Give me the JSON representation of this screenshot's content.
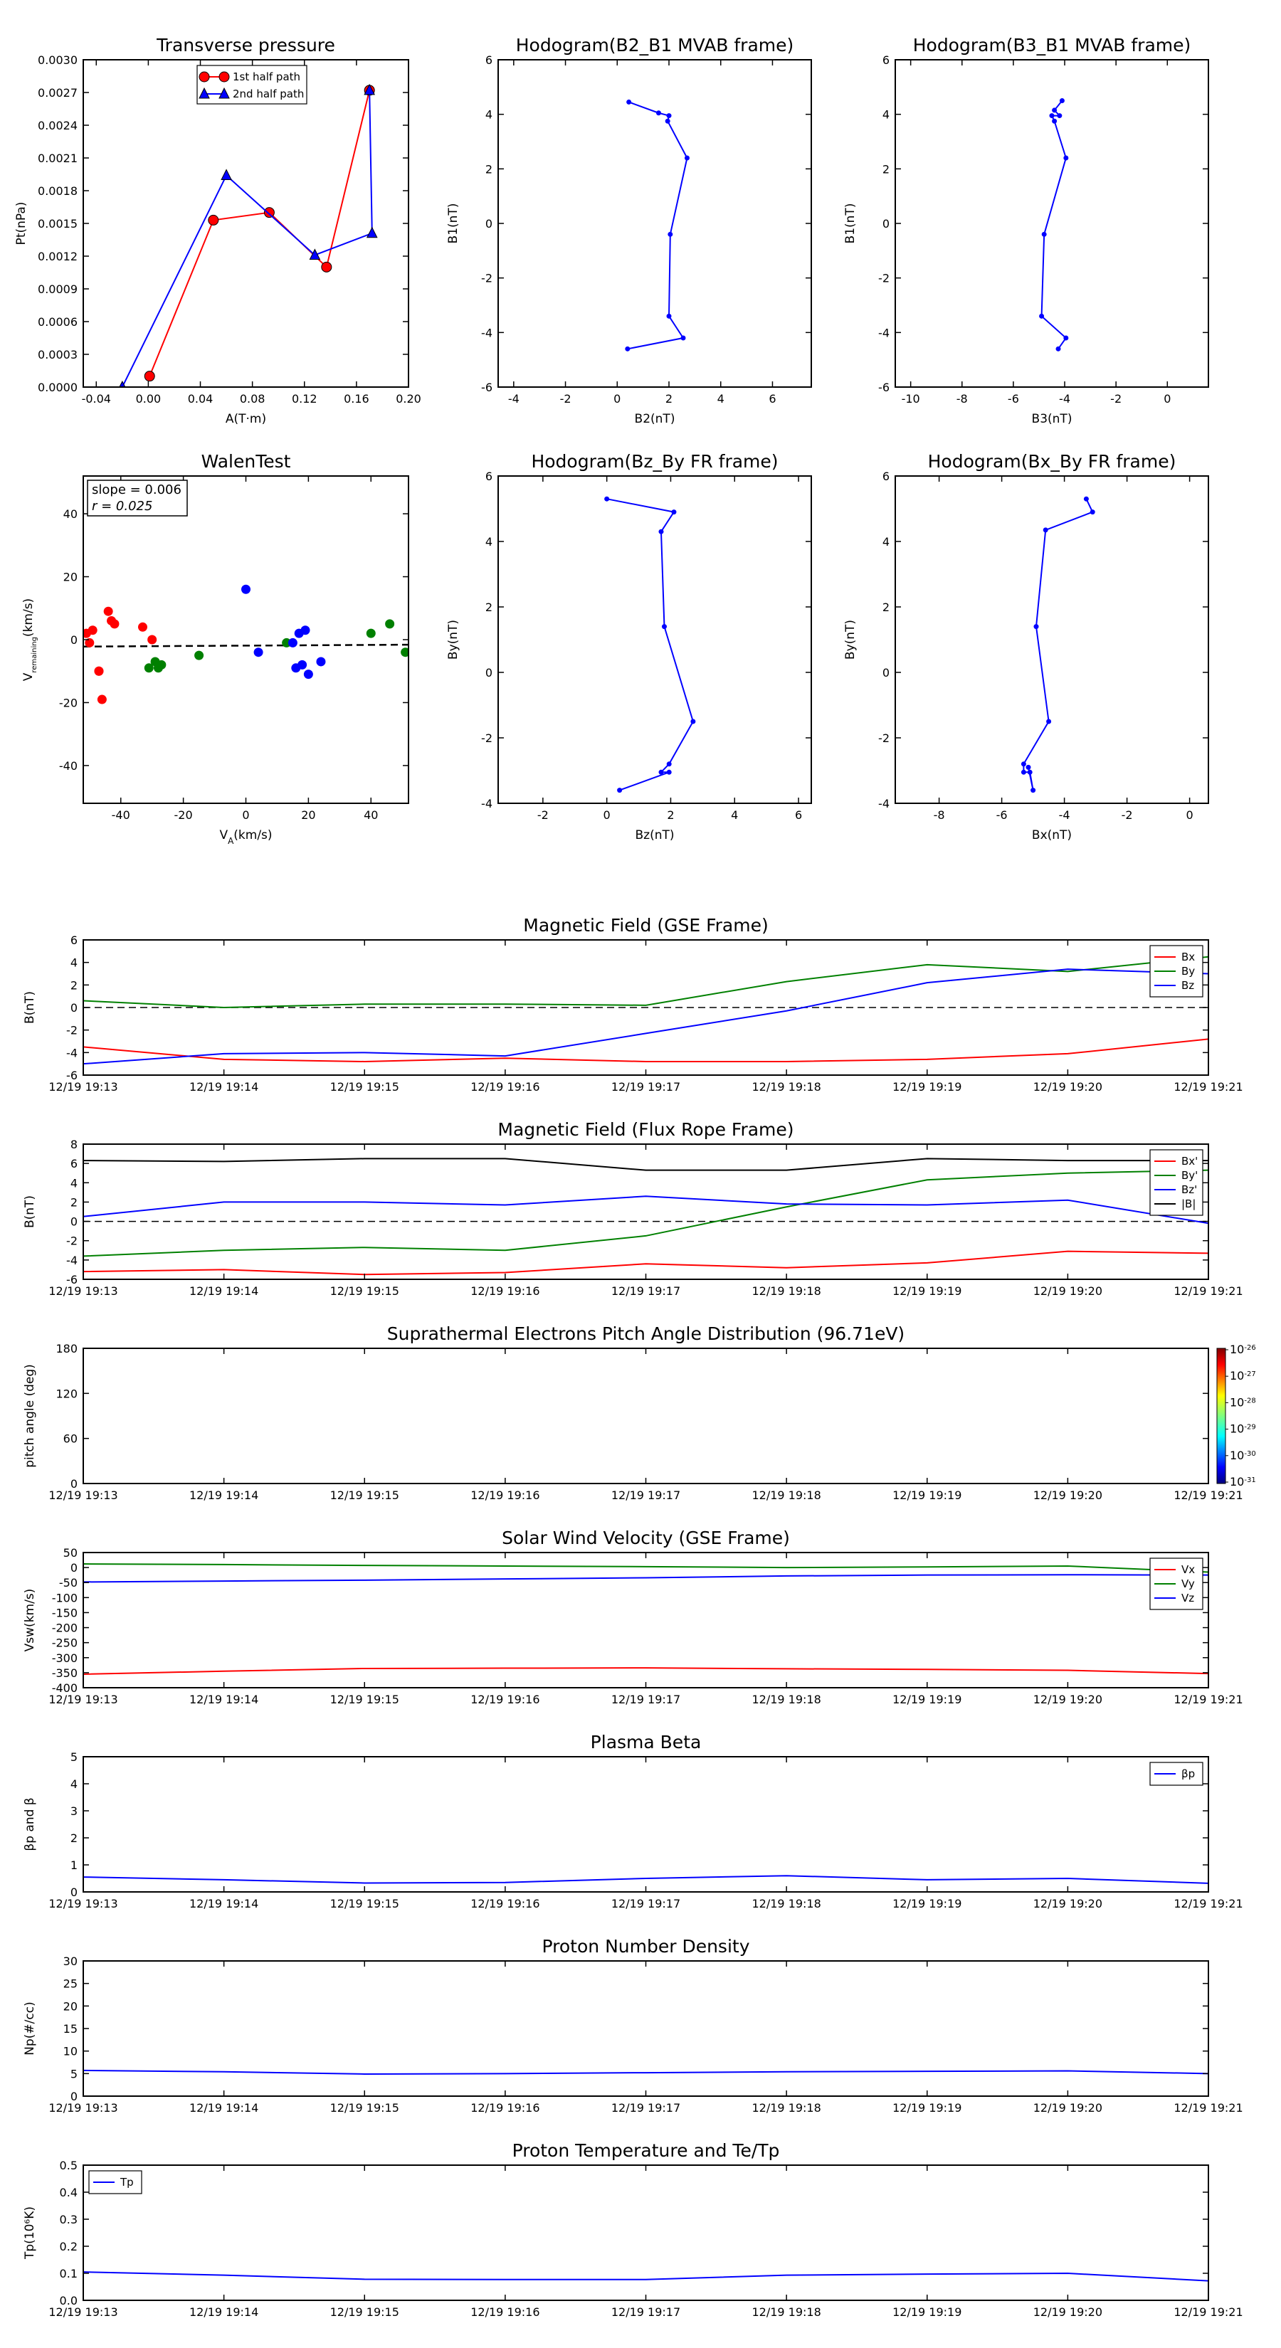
{
  "colors": {
    "red": "#ff0000",
    "green": "#008000",
    "blue": "#0000ff",
    "black": "#000000"
  },
  "chart_data": [
    {
      "id": "tp",
      "type": "line",
      "title": "Transverse pressure",
      "xlabel": "A(T·m)",
      "ylabel": "Pt(nPa)",
      "xlim": [
        -0.05,
        0.2
      ],
      "ylim": [
        0,
        0.003
      ],
      "xticks": [
        "-0.04",
        "0.00",
        "0.04",
        "0.08",
        "0.12",
        "0.16",
        "0.20"
      ],
      "yticks": [
        "0.0000",
        "0.0003",
        "0.0006",
        "0.0009",
        "0.0012",
        "0.0015",
        "0.0018",
        "0.0021",
        "0.0024",
        "0.0027",
        "0.0030"
      ],
      "legend_loc": "upper-center",
      "series": [
        {
          "name": "1st half path",
          "color": "#ff0000",
          "marker": "circle",
          "x": [
            0.001,
            0.05,
            0.093,
            0.137,
            0.17
          ],
          "y": [
            0.0001,
            0.00153,
            0.0016,
            0.0011,
            0.00272
          ]
        },
        {
          "name": "2nd half path",
          "color": "#0000ff",
          "marker": "triangle",
          "x": [
            0.17,
            0.172,
            0.128,
            0.06,
            -0.02
          ],
          "y": [
            0.00272,
            0.00141,
            0.00121,
            0.00194,
            0.0
          ]
        }
      ]
    },
    {
      "id": "h1",
      "type": "line",
      "title": "Hodogram(B2_B1 MVAB frame)",
      "xlabel": "B2(nT)",
      "ylabel": "B1(nT)",
      "xlim": [
        -4.6,
        7.5
      ],
      "ylim": [
        -6,
        6
      ],
      "xticks": [
        "-4",
        "-2",
        "0",
        "2",
        "4",
        "6"
      ],
      "yticks": [
        "-6",
        "-4",
        "-2",
        "0",
        "2",
        "4",
        "6"
      ],
      "series": [
        {
          "name": "",
          "color": "#0000ff",
          "marker": "dot",
          "x": [
            0.45,
            1.6,
            2.0,
            1.95,
            2.7,
            2.05,
            2.0,
            2.55,
            0.4
          ],
          "y": [
            4.45,
            4.05,
            3.95,
            3.75,
            2.4,
            -0.4,
            -3.4,
            -4.2,
            -4.6
          ]
        }
      ]
    },
    {
      "id": "h2",
      "type": "line",
      "title": "Hodogram(B3_B1 MVAB frame)",
      "xlabel": "B3(nT)",
      "ylabel": "B1(nT)",
      "xlim": [
        -10.6,
        1.6
      ],
      "ylim": [
        -6,
        6
      ],
      "xticks": [
        "-10",
        "-8",
        "-6",
        "-4",
        "-2",
        "0"
      ],
      "yticks": [
        "-6",
        "-4",
        "-2",
        "0",
        "2",
        "4",
        "6"
      ],
      "series": [
        {
          "name": "",
          "color": "#0000ff",
          "marker": "dot",
          "x": [
            -4.1,
            -4.4,
            -4.2,
            -4.5,
            -4.4,
            -3.95,
            -4.8,
            -4.9,
            -3.95,
            -4.25
          ],
          "y": [
            4.5,
            4.15,
            3.95,
            3.95,
            3.75,
            2.4,
            -0.4,
            -3.4,
            -4.2,
            -4.6
          ]
        }
      ]
    },
    {
      "id": "walen",
      "type": "scatter",
      "title": "WalenTest",
      "xlabel": "V_A(km/s)",
      "ylabel": "V_remaining(km/s)",
      "xlim": [
        -52,
        52
      ],
      "ylim": [
        -52,
        52
      ],
      "xticks": [
        "-40",
        "-20",
        "0",
        "20",
        "40"
      ],
      "yticks": [
        "-40",
        "-20",
        "0",
        "20",
        "40"
      ],
      "annotation": [
        "slope = 0.006",
        "r = 0.025"
      ],
      "fit_line": {
        "x": [
          -52,
          52
        ],
        "y": [
          -2.2,
          -1.6
        ]
      },
      "series": [
        {
          "name": "",
          "color": "#ff0000",
          "x": [
            -51,
            -49,
            -47,
            -46,
            -44,
            -43,
            -42,
            -33,
            -30,
            -50,
            -47
          ],
          "y": [
            2,
            3,
            -10,
            -19,
            9,
            6,
            5,
            4,
            0,
            -1,
            -10
          ]
        },
        {
          "name": "",
          "color": "#008000",
          "x": [
            -31,
            -29,
            -28,
            -27,
            -15,
            13,
            40,
            46,
            51
          ],
          "y": [
            -9,
            -7,
            -9,
            -8,
            -5,
            -1,
            2,
            5,
            -4
          ]
        },
        {
          "name": "",
          "color": "#0000ff",
          "x": [
            0,
            4,
            15,
            16,
            17,
            18,
            19,
            20,
            24
          ],
          "y": [
            16,
            -4,
            -1,
            -9,
            2,
            -8,
            3,
            -11,
            -7
          ]
        }
      ]
    },
    {
      "id": "h3",
      "type": "line",
      "title": "Hodogram(Bz_By FR frame)",
      "xlabel": "Bz(nT)",
      "ylabel": "By(nT)",
      "xlim": [
        -3.4,
        6.4
      ],
      "ylim": [
        -4,
        6
      ],
      "xticks": [
        "-2",
        "0",
        "2",
        "4",
        "6"
      ],
      "yticks": [
        "-4",
        "-2",
        "0",
        "2",
        "4",
        "6"
      ],
      "series": [
        {
          "name": "",
          "color": "#0000ff",
          "marker": "dot",
          "x": [
            0,
            2.1,
            1.7,
            1.8,
            2.7,
            1.95,
            1.7,
            1.95,
            0.4
          ],
          "y": [
            5.3,
            4.9,
            4.3,
            1.4,
            -1.5,
            -2.8,
            -3.05,
            -3.05,
            -3.6
          ]
        }
      ]
    },
    {
      "id": "h4",
      "type": "line",
      "title": "Hodogram(Bx_By FR frame)",
      "xlabel": "Bx(nT)",
      "ylabel": "By(nT)",
      "xlim": [
        -9.4,
        0.6
      ],
      "ylim": [
        -4,
        6
      ],
      "xticks": [
        "-8",
        "-6",
        "-4",
        "-2",
        "0"
      ],
      "yticks": [
        "-4",
        "-2",
        "0",
        "2",
        "4",
        "6"
      ],
      "series": [
        {
          "name": "",
          "color": "#0000ff",
          "marker": "dot",
          "x": [
            -3.3,
            -3.1,
            -4.6,
            -4.9,
            -4.5,
            -5.3,
            -5.3,
            -5.1,
            -5.0,
            -5.15
          ],
          "y": [
            5.3,
            4.9,
            4.35,
            1.4,
            -1.5,
            -2.8,
            -3.05,
            -3.05,
            -3.6,
            -2.9
          ]
        }
      ]
    },
    {
      "id": "bgse",
      "type": "line",
      "title": "Magnetic Field (GSE Frame)",
      "ylabel": "B(nT)",
      "ylim": [
        -6,
        6
      ],
      "yticks": [
        "-6",
        "-4",
        "-2",
        "0",
        "2",
        "4",
        "6"
      ],
      "zero_line": true,
      "legend_loc": "top-right",
      "x": [
        "12/19 19:13",
        "12/19 19:14",
        "12/19 19:15",
        "12/19 19:16",
        "12/19 19:17",
        "12/19 19:18",
        "12/19 19:19",
        "12/19 19:20",
        "12/19 19:21"
      ],
      "series": [
        {
          "name": "Bx",
          "color": "#ff0000",
          "values": [
            -3.5,
            -4.6,
            -4.8,
            -4.5,
            -4.8,
            -4.8,
            -4.6,
            -4.1,
            -2.8
          ]
        },
        {
          "name": "By",
          "color": "#008000",
          "values": [
            0.6,
            0.0,
            0.3,
            0.3,
            0.2,
            2.3,
            3.8,
            3.2,
            4.5
          ]
        },
        {
          "name": "Bz",
          "color": "#0000ff",
          "values": [
            -5.0,
            -4.1,
            -4.0,
            -4.3,
            -2.3,
            -0.3,
            2.2,
            3.4,
            3.0
          ]
        }
      ]
    },
    {
      "id": "bfr",
      "type": "line",
      "title": "Magnetic Field (Flux Rope Frame)",
      "ylabel": "B(nT)",
      "ylim": [
        -6,
        8
      ],
      "yticks": [
        "-6",
        "-4",
        "-2",
        "0",
        "2",
        "4",
        "6",
        "8"
      ],
      "zero_line": true,
      "legend_loc": "top-right",
      "x": [
        "12/19 19:13",
        "12/19 19:14",
        "12/19 19:15",
        "12/19 19:16",
        "12/19 19:17",
        "12/19 19:18",
        "12/19 19:19",
        "12/19 19:20",
        "12/19 19:21"
      ],
      "series": [
        {
          "name": "Bx'",
          "color": "#ff0000",
          "values": [
            -5.2,
            -5.0,
            -5.5,
            -5.3,
            -4.4,
            -4.8,
            -4.3,
            -3.1,
            -3.3
          ]
        },
        {
          "name": "By'",
          "color": "#008000",
          "values": [
            -3.6,
            -3.0,
            -2.7,
            -3.0,
            -1.5,
            1.5,
            4.3,
            5.0,
            5.3
          ]
        },
        {
          "name": "Bz'",
          "color": "#0000ff",
          "values": [
            0.5,
            2.0,
            2.0,
            1.7,
            2.6,
            1.8,
            1.7,
            2.2,
            -0.2
          ]
        },
        {
          "name": "|B|",
          "color": "#000000",
          "values": [
            6.3,
            6.2,
            6.5,
            6.5,
            5.3,
            5.3,
            6.5,
            6.3,
            6.3
          ]
        }
      ]
    },
    {
      "id": "pad",
      "type": "heatmap",
      "title": "Suprathermal Electrons Pitch Angle Distribution (96.71eV)",
      "ylabel": "pitch angle (deg)",
      "ylim": [
        0,
        180
      ],
      "yticks": [
        "0",
        "60",
        "120",
        "180"
      ],
      "x": [
        "12/19 19:13",
        "12/19 19:14",
        "12/19 19:15",
        "12/19 19:16",
        "12/19 19:17",
        "12/19 19:18",
        "12/19 19:19",
        "12/19 19:20",
        "12/19 19:21"
      ],
      "colorbar": {
        "ticks": [
          "10",
          "10",
          "10",
          "10",
          "10",
          "10"
        ],
        "exponents": [
          "-26",
          "-27",
          "-28",
          "-29",
          "-30",
          "-31"
        ]
      },
      "series": []
    },
    {
      "id": "vsw",
      "type": "line",
      "title": "Solar Wind Velocity (GSE Frame)",
      "ylabel": "Vsw(km/s)",
      "ylim": [
        -400,
        50
      ],
      "yticks": [
        "-400",
        "-350",
        "-300",
        "-250",
        "-200",
        "-150",
        "-100",
        "-50",
        "0",
        "50"
      ],
      "legend_loc": "top-right",
      "x": [
        "12/19 19:13",
        "12/19 19:14",
        "12/19 19:15",
        "12/19 19:16",
        "12/19 19:17",
        "12/19 19:18",
        "12/19 19:19",
        "12/19 19:20",
        "12/19 19:21"
      ],
      "series": [
        {
          "name": "Vx",
          "color": "#ff0000",
          "values": [
            -355,
            -345,
            -336,
            -335,
            -334,
            -337,
            -339,
            -342,
            -353
          ]
        },
        {
          "name": "Vy",
          "color": "#008000",
          "values": [
            12,
            10,
            7,
            5,
            3,
            0,
            2,
            5,
            -15
          ]
        },
        {
          "name": "Vz",
          "color": "#0000ff",
          "values": [
            -48,
            -45,
            -42,
            -38,
            -34,
            -28,
            -25,
            -24,
            -25
          ]
        }
      ]
    },
    {
      "id": "beta",
      "type": "line",
      "title": "Plasma Beta",
      "ylabel": "βp and β",
      "ylim": [
        0,
        5
      ],
      "yticks": [
        "0",
        "1",
        "2",
        "3",
        "4",
        "5"
      ],
      "legend_loc": "top-right",
      "x": [
        "12/19 19:13",
        "12/19 19:14",
        "12/19 19:15",
        "12/19 19:16",
        "12/19 19:17",
        "12/19 19:18",
        "12/19 19:19",
        "12/19 19:20",
        "12/19 19:21"
      ],
      "series": [
        {
          "name": "βp",
          "color": "#0000ff",
          "values": [
            0.55,
            0.45,
            0.33,
            0.35,
            0.5,
            0.6,
            0.45,
            0.5,
            0.32
          ]
        }
      ]
    },
    {
      "id": "np",
      "type": "line",
      "title": "Proton Number Density",
      "ylabel": "Np(#/cc)",
      "ylim": [
        0,
        30
      ],
      "yticks": [
        "0",
        "5",
        "10",
        "15",
        "20",
        "25",
        "30"
      ],
      "x": [
        "12/19 19:13",
        "12/19 19:14",
        "12/19 19:15",
        "12/19 19:16",
        "12/19 19:17",
        "12/19 19:18",
        "12/19 19:19",
        "12/19 19:20",
        "12/19 19:21"
      ],
      "series": [
        {
          "name": "",
          "color": "#0000ff",
          "values": [
            5.7,
            5.4,
            4.9,
            5.0,
            5.2,
            5.4,
            5.5,
            5.6,
            5.0
          ]
        }
      ]
    },
    {
      "id": "tp2",
      "type": "line",
      "title": "Proton Temperature and Te/Tp",
      "ylabel": "Tp(10⁶K)",
      "ylim": [
        0,
        0.5
      ],
      "yticks": [
        "0.0",
        "0.1",
        "0.2",
        "0.3",
        "0.4",
        "0.5"
      ],
      "legend_loc": "top-left",
      "x": [
        "12/19 19:13",
        "12/19 19:14",
        "12/19 19:15",
        "12/19 19:16",
        "12/19 19:17",
        "12/19 19:18",
        "12/19 19:19",
        "12/19 19:20",
        "12/19 19:21"
      ],
      "series": [
        {
          "name": "Tp",
          "color": "#0000ff",
          "values": [
            0.105,
            0.093,
            0.078,
            0.077,
            0.077,
            0.093,
            0.097,
            0.1,
            0.072
          ]
        }
      ]
    }
  ]
}
